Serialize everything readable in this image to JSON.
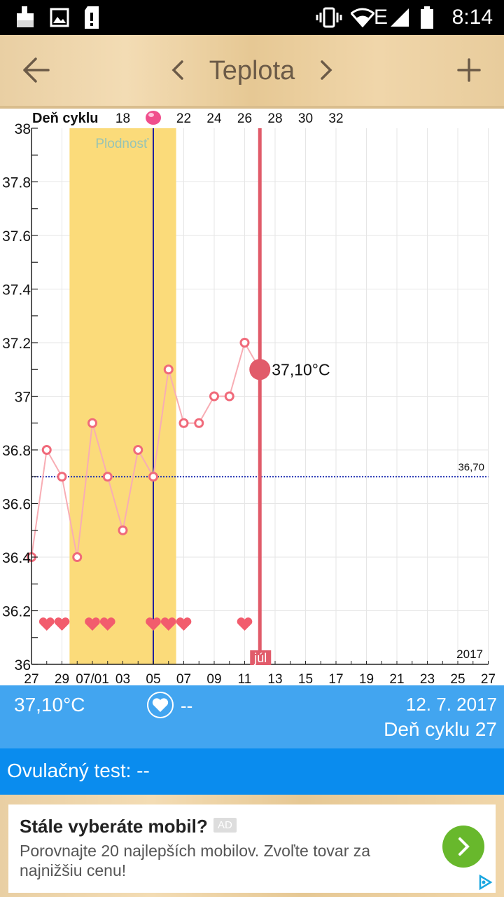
{
  "status_bar": {
    "time": "8:14",
    "left_icons": [
      "cleaning-icon",
      "image-icon",
      "sd-card-alert-icon"
    ],
    "right_icons": [
      "vibrate-icon",
      "wifi-icon",
      "network-e-icon",
      "signal-icon",
      "battery-icon"
    ],
    "network_label": "E"
  },
  "header": {
    "title": "Teplota",
    "back_icon": "arrow-back-icon",
    "prev_icon": "chevron-left-icon",
    "next_icon": "chevron-right-icon",
    "add_icon": "plus-icon"
  },
  "chart_data": {
    "type": "line",
    "title": "",
    "cycle_label": "Deň cyklu",
    "cycle_ticks": [
      "18",
      "22",
      "24",
      "26",
      "28",
      "30",
      "32"
    ],
    "fertile_label": "Plodnosť",
    "year_label": "2017",
    "month_label": "júl",
    "x_tick_labels": [
      "27",
      "29",
      "07/01",
      "03",
      "05",
      "07",
      "09",
      "11",
      "13",
      "15",
      "17",
      "19",
      "21",
      "23",
      "25",
      "27"
    ],
    "y_tick_labels": [
      "38",
      "37.8",
      "37.6",
      "37.4",
      "37.2",
      "37",
      "36.8",
      "36.6",
      "36.4",
      "36.2",
      "36"
    ],
    "ylim": [
      36,
      38
    ],
    "coverline": {
      "value": 36.7,
      "label": "36,70",
      "color": "#1a2bb0"
    },
    "series": [
      {
        "x_days": [
          0,
          1,
          2,
          3,
          4,
          5,
          6,
          7,
          8,
          9,
          10,
          11,
          12,
          13,
          14,
          15
        ],
        "values": [
          36.4,
          36.8,
          36.7,
          36.4,
          36.9,
          36.7,
          36.5,
          36.8,
          36.7,
          37.1,
          36.9,
          36.9,
          37.0,
          37.0,
          37.2,
          37.1
        ],
        "color": "#f06a7a"
      }
    ],
    "current_point": {
      "x_day": 15,
      "value": 37.1,
      "label": "37,10°C"
    },
    "heart_days": [
      1,
      2,
      4,
      5,
      8,
      9,
      10,
      14
    ],
    "fertile_range_days": [
      2.5,
      9.5
    ],
    "ovulation_day": 8,
    "today_day": 15,
    "grid": true,
    "colors": {
      "fertile": "#fbdb7a",
      "ovulation_line": "#23209b",
      "today_line": "#e15b6a",
      "heart": "#f25c6d",
      "ovulation_marker": "#f04e8c"
    }
  },
  "info": {
    "temperature": "37,10°C",
    "heart_icon": "heart-icon",
    "intercourse_value": "--",
    "date": "12. 7. 2017",
    "cycle_day": "Deň cyklu 27",
    "ovulation_test": "Ovulačný test: --"
  },
  "ad": {
    "title": "Stále vyberáte mobil?",
    "badge": "AD",
    "body": "Porovnajte 20 najlepších mobilov. Zvoľte tovar za najnižšiu cenu!",
    "go_icon": "chevron-right-icon",
    "adchoices_icon": "adchoices-icon",
    "accent": "#68b82c"
  }
}
